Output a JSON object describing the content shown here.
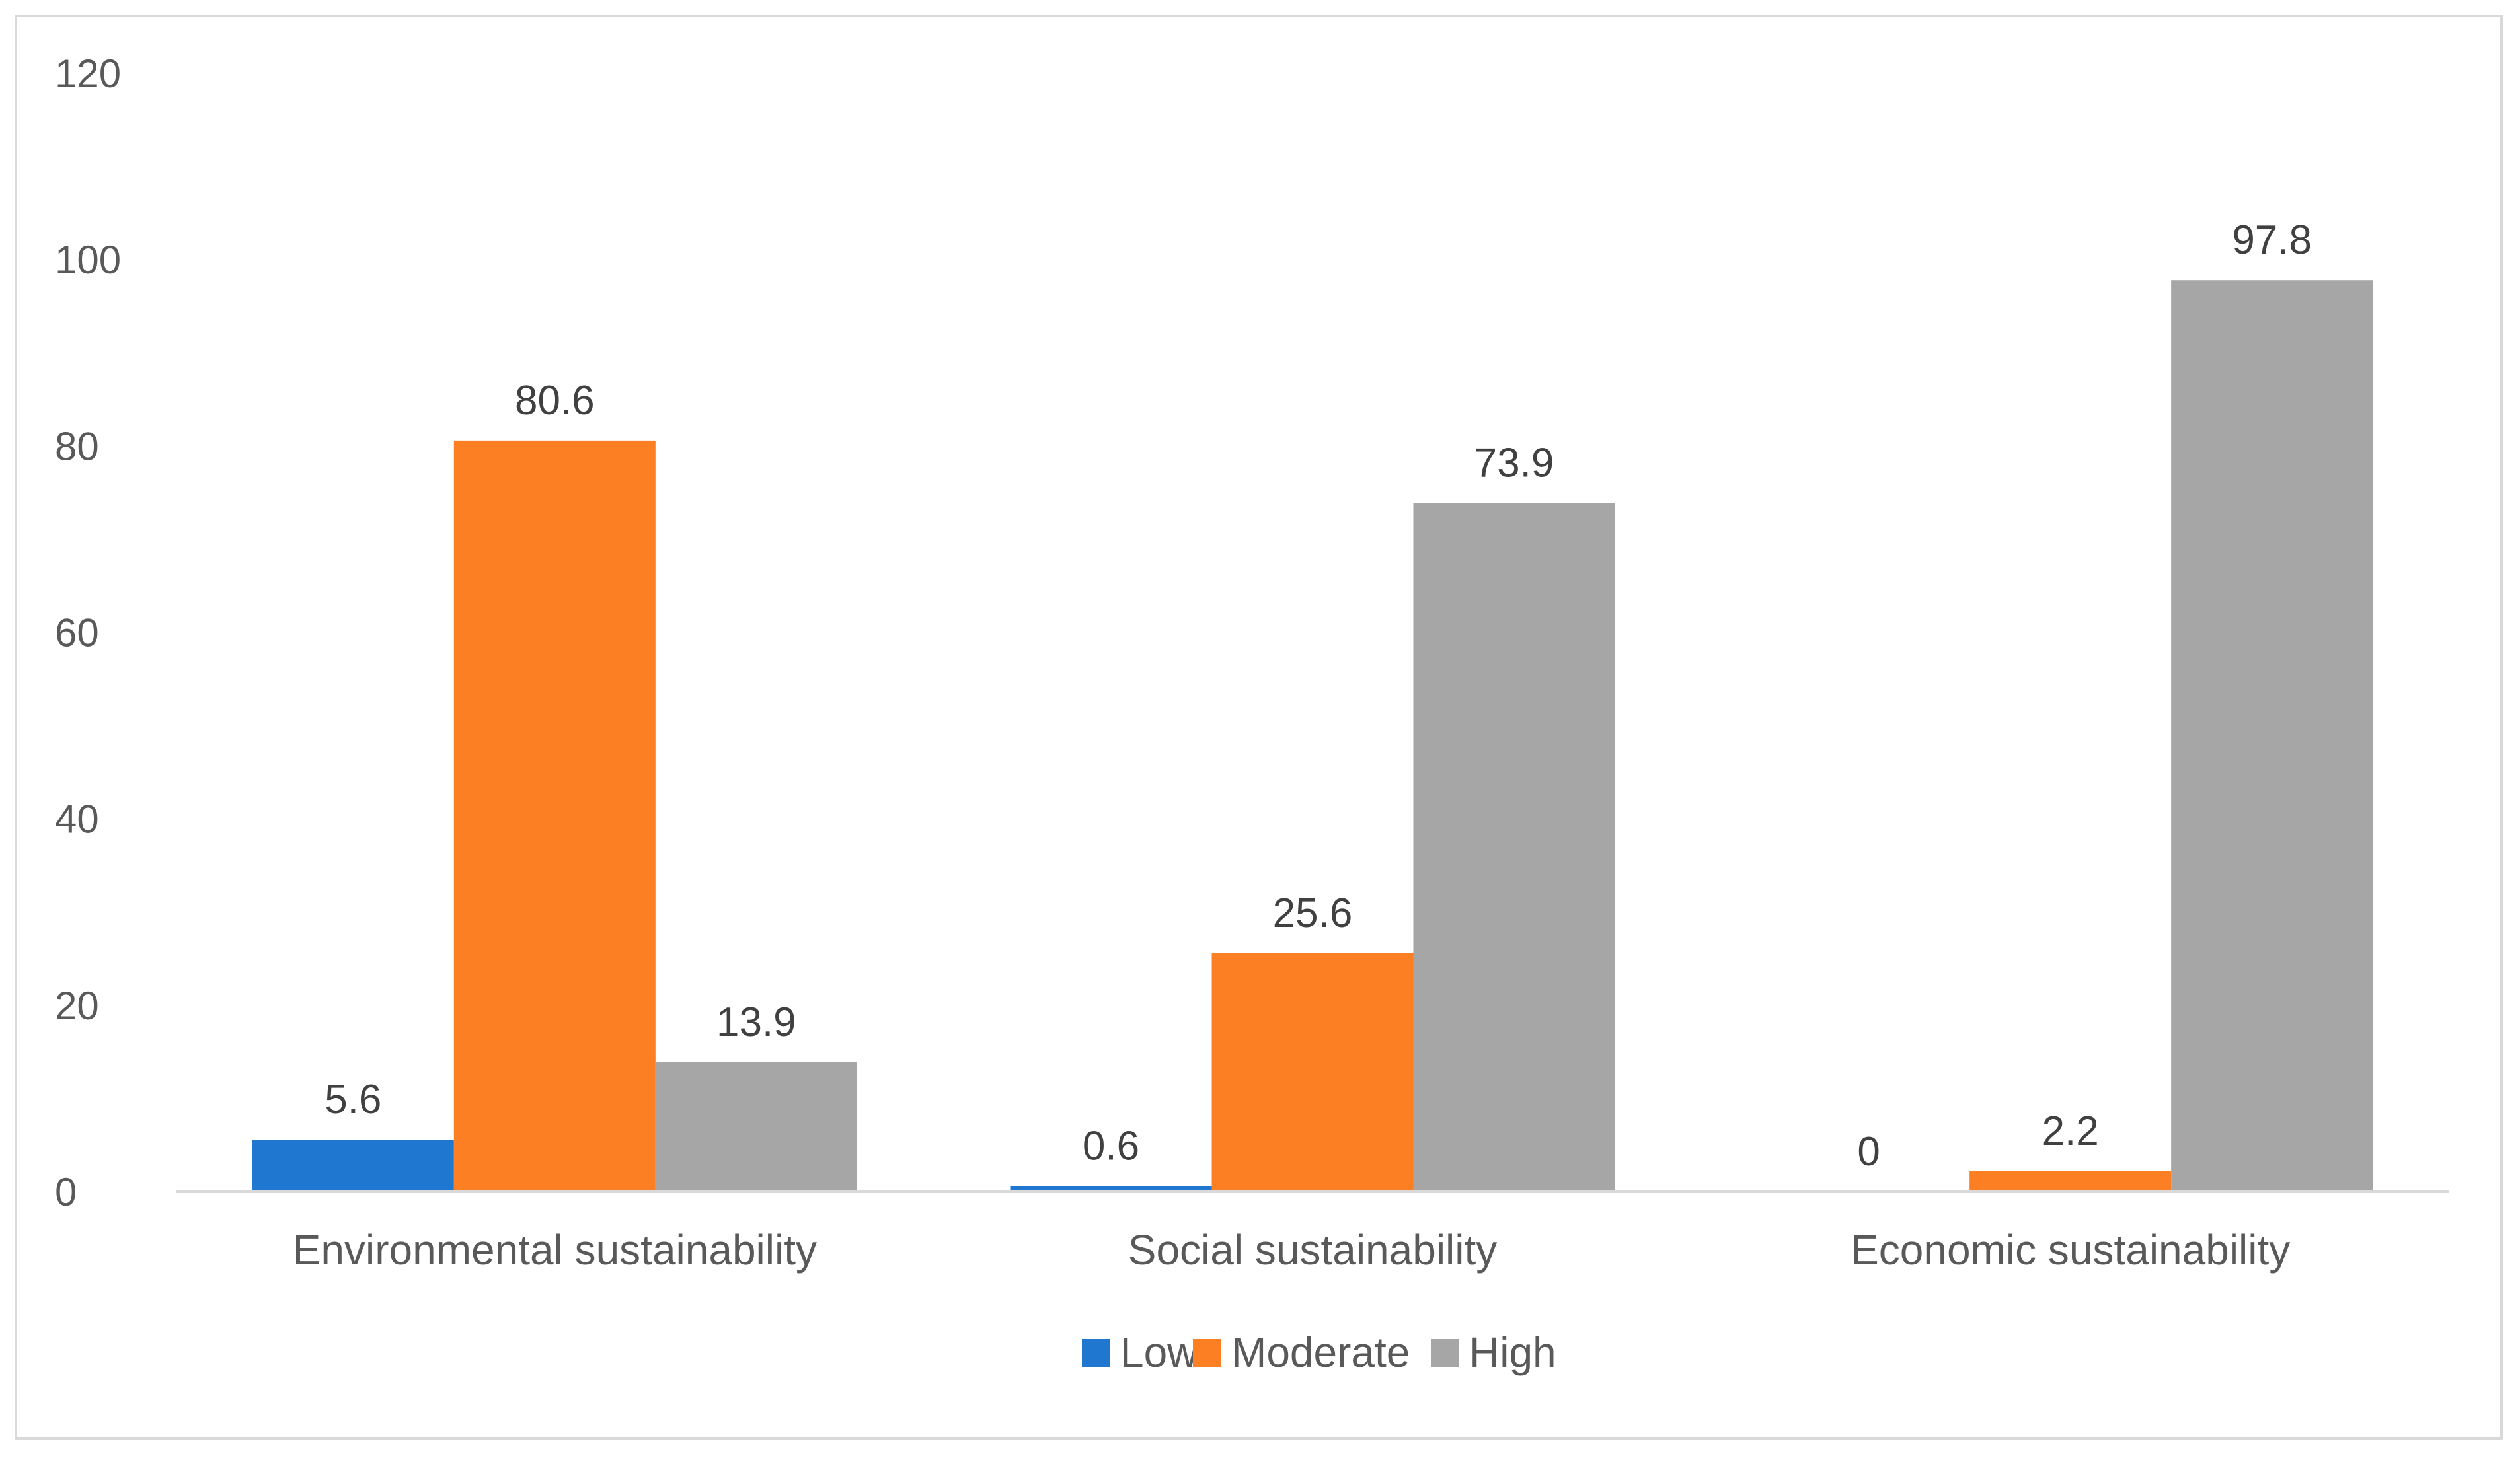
{
  "chart_data": {
    "type": "bar",
    "title": "",
    "xlabel": "",
    "ylabel": "",
    "ylim": [
      0,
      120
    ],
    "yticks": [
      0,
      20,
      40,
      60,
      80,
      100,
      120
    ],
    "grid": false,
    "legend_position": "bottom",
    "categories": [
      "Environmental sustainability",
      "Social sustainability",
      "Economic sustainability"
    ],
    "series": [
      {
        "name": "Low",
        "color": "#1f77d0",
        "values": [
          5.6,
          0.6,
          0
        ],
        "labels": [
          "5.6",
          "0.6",
          "0"
        ]
      },
      {
        "name": "Moderate",
        "color": "#fd7f23",
        "values": [
          80.6,
          25.6,
          2.2
        ],
        "labels": [
          "80.6",
          "25.6",
          "2.2"
        ]
      },
      {
        "name": "High",
        "color": "#a6a6a6",
        "values": [
          13.9,
          73.9,
          97.8
        ],
        "labels": [
          "13.9",
          "73.9",
          "97.8"
        ]
      }
    ]
  }
}
